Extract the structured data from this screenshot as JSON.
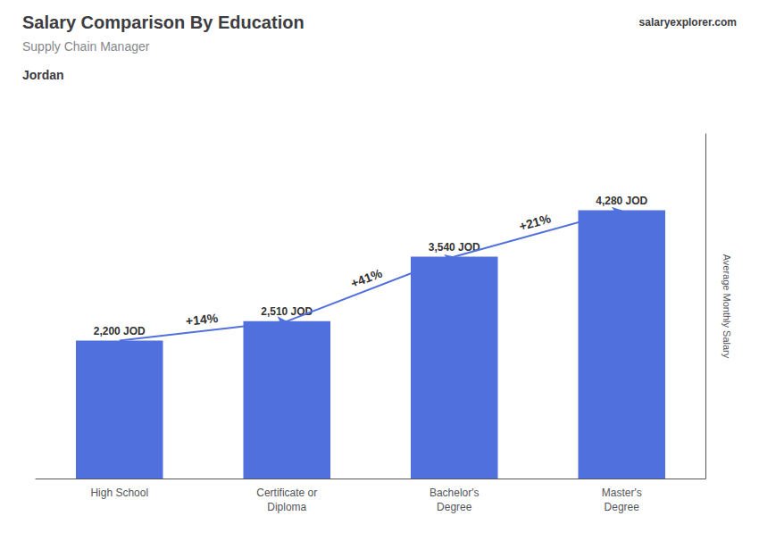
{
  "chart_data": {
    "type": "bar",
    "title": "Salary Comparison By Education",
    "subtitle": "Supply Chain Manager",
    "ylabel": "Average Monthly Salary",
    "categories": [
      "High School",
      "Certificate or\nDiploma",
      "Bachelor's\nDegree",
      "Master's\nDegree"
    ],
    "values": [
      2200,
      2510,
      3540,
      4280
    ],
    "value_labels": [
      "2,200 JOD",
      "2,510 JOD",
      "3,540 JOD",
      "4,280 JOD"
    ],
    "data_labels": true,
    "ylim": [
      0,
      5500
    ],
    "tick_labels": false,
    "grid": false,
    "annotations": [
      {
        "text": "Jordan"
      },
      {
        "text": "salaryexplorer.com"
      },
      {
        "text": "+14%",
        "from": "High School",
        "to": "Certificate or\nDiploma"
      },
      {
        "text": "+41%",
        "from": "Certificate or\nDiploma",
        "to": "Bachelor's\nDegree"
      },
      {
        "text": "+21%",
        "from": "Bachelor's\nDegree",
        "to": "Master's\nDegree"
      }
    ]
  }
}
